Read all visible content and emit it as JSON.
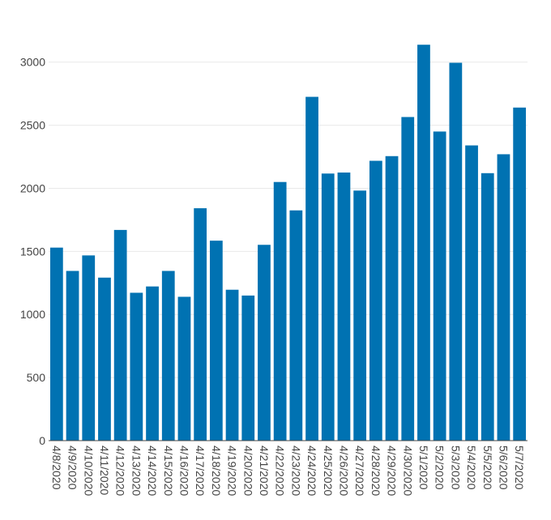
{
  "chart_data": {
    "type": "bar",
    "title": "",
    "xlabel": "",
    "ylabel": "",
    "categories": [
      "4/8/2020",
      "4/9/2020",
      "4/10/2020",
      "4/11/2020",
      "4/12/2020",
      "4/13/2020",
      "4/14/2020",
      "4/15/2020",
      "4/16/2020",
      "4/17/2020",
      "4/18/2020",
      "4/19/2020",
      "4/20/2020",
      "4/21/2020",
      "4/22/2020",
      "4/23/2020",
      "4/24/2020",
      "4/25/2020",
      "4/26/2020",
      "4/27/2020",
      "4/28/2020",
      "4/29/2020",
      "4/30/2020",
      "5/1/2020",
      "5/2/2020",
      "5/3/2020",
      "5/4/2020",
      "5/5/2020",
      "5/6/2020",
      "5/7/2020"
    ],
    "values": [
      1530,
      1345,
      1468,
      1292,
      1670,
      1172,
      1222,
      1345,
      1140,
      1842,
      1585,
      1196,
      1150,
      1552,
      2050,
      1825,
      2725,
      2117,
      2125,
      1982,
      2218,
      2255,
      2565,
      3138,
      2450,
      2995,
      2340,
      2120,
      2270,
      2640
    ],
    "ylim": [
      0,
      3300
    ],
    "yticks": [
      0,
      500,
      1000,
      1500,
      2000,
      2500,
      3000
    ],
    "grid": true,
    "legend": "none",
    "bar_color": "#0072b2"
  }
}
